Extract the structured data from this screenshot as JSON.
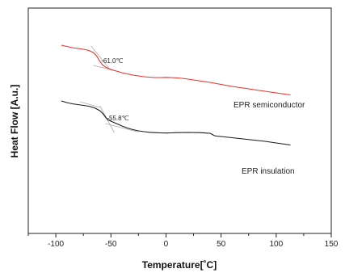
{
  "chart_data": {
    "type": "line",
    "title": "",
    "xlabel": "Temperature[˚C]",
    "ylabel": "Heat Flow [A.u.]",
    "xlim": [
      -125,
      150
    ],
    "x_ticks": [
      -100,
      -50,
      0,
      50,
      100,
      150
    ],
    "y_ticks_shown": false,
    "grid": false,
    "legend": "none",
    "series": [
      {
        "name": "EPR semiconductor",
        "color": "#e8332a",
        "x": [
          -95,
          -90,
          -85,
          -80,
          -75,
          -70,
          -66,
          -63,
          -61,
          -59,
          -57,
          -55,
          -50,
          -45,
          -40,
          -35,
          -30,
          -25,
          -20,
          -15,
          -10,
          -5,
          0,
          5,
          10,
          15,
          20,
          30,
          40,
          50,
          60,
          70,
          80,
          90,
          100,
          113
        ],
        "y": [
          9.4,
          9.25,
          9.1,
          9.0,
          8.9,
          8.75,
          8.5,
          8.1,
          7.6,
          7.2,
          6.9,
          6.7,
          6.4,
          6.2,
          6.0,
          5.85,
          5.7,
          5.6,
          5.5,
          5.45,
          5.4,
          5.4,
          5.42,
          5.4,
          5.35,
          5.3,
          5.2,
          5.0,
          4.8,
          4.55,
          4.3,
          4.1,
          3.9,
          3.7,
          3.5,
          3.25
        ]
      },
      {
        "name": "EPR insulation",
        "color": "#1a1a1a",
        "x": [
          -95,
          -90,
          -85,
          -80,
          -75,
          -70,
          -65,
          -60,
          -57,
          -55,
          -53,
          -50,
          -45,
          -40,
          -35,
          -30,
          -25,
          -20,
          -15,
          -10,
          -5,
          0,
          5,
          10,
          20,
          30,
          40,
          42,
          44,
          46,
          50,
          60,
          70,
          80,
          90,
          100,
          113
        ],
        "y": [
          2.5,
          2.3,
          2.15,
          2.05,
          1.95,
          1.85,
          1.65,
          1.3,
          0.9,
          0.5,
          0.2,
          0.0,
          -0.3,
          -0.6,
          -0.85,
          -1.05,
          -1.2,
          -1.3,
          -1.38,
          -1.42,
          -1.45,
          -1.47,
          -1.45,
          -1.42,
          -1.4,
          -1.42,
          -1.5,
          -1.65,
          -1.8,
          -1.85,
          -1.9,
          -2.05,
          -2.2,
          -2.35,
          -2.5,
          -2.7,
          -2.95
        ]
      }
    ],
    "annotations": [
      {
        "text": "-61.0℃",
        "x": -61.0,
        "y": 7.6
      },
      {
        "text": "-55.8℃",
        "x": -55.8,
        "y": 0.5
      }
    ],
    "series_labels": [
      {
        "text": "EPR semiconductor"
      },
      {
        "text": "EPR insulation"
      }
    ]
  }
}
